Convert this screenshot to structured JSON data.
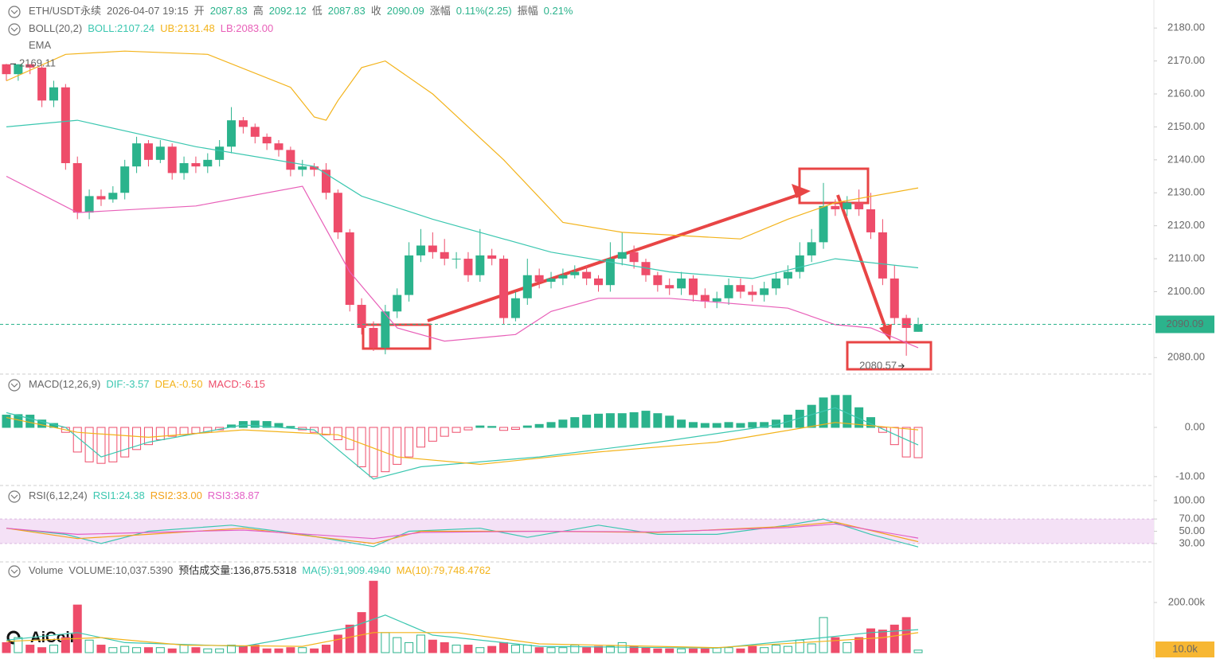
{
  "brand": "AiCoin",
  "chart_data": [
    {
      "type": "candlestick",
      "header": {
        "symbol": "ETH/USDT永续",
        "time": "2026-04-07 19:15",
        "fields": [
          {
            "label": "开",
            "value": "2087.83"
          },
          {
            "label": "高",
            "value": "2092.12"
          },
          {
            "label": "低",
            "value": "2087.83"
          },
          {
            "label": "收",
            "value": "2090.09"
          },
          {
            "label": "涨幅",
            "value": "0.11%(2.25)"
          },
          {
            "label": "振幅",
            "value": "0.21%"
          }
        ]
      },
      "title": "BOLL(20,2)",
      "ema_title": "EMA",
      "up_color": "#2bb38c",
      "down_color": "#ee4c6a",
      "open": [
        2169,
        2166,
        2169,
        2168,
        2158,
        2162,
        2139,
        2124,
        2129,
        2128,
        2130,
        2138,
        2145,
        2140,
        2144,
        2136,
        2139,
        2138,
        2140,
        2144,
        2152,
        2150,
        2147,
        2145,
        2143,
        2137,
        2138,
        2137,
        2130,
        2118,
        2096,
        2089,
        2083,
        2094,
        2099,
        2111,
        2114,
        2112,
        2110,
        2110,
        2105,
        2111,
        2110,
        2092,
        2098,
        2105,
        2103,
        2104,
        2105,
        2106,
        2104,
        2102,
        2110,
        2112,
        2109,
        2105,
        2102,
        2101,
        2104,
        2099,
        2097,
        2098,
        2102,
        2100,
        2099,
        2101,
        2104,
        2106,
        2111,
        2115,
        2126,
        2125,
        2127,
        2125,
        2118,
        2104,
        2092,
        2087.83
      ],
      "high": [
        2169.11,
        2169,
        2169,
        2169,
        2164,
        2163,
        2141,
        2131,
        2131,
        2132,
        2140,
        2147,
        2146,
        2146,
        2145,
        2141,
        2141,
        2142,
        2146,
        2156,
        2153,
        2151,
        2148,
        2146,
        2144,
        2140,
        2139,
        2139,
        2131,
        2119,
        2098,
        2091,
        2096,
        2101,
        2115,
        2119,
        2118,
        2116,
        2112,
        2112,
        2119,
        2113,
        2111,
        2100,
        2110,
        2107,
        2106,
        2107,
        2108,
        2108,
        2105,
        2115,
        2118,
        2114,
        2110,
        2106,
        2104,
        2106,
        2105,
        2101,
        2100,
        2104,
        2104,
        2102,
        2103,
        2106,
        2108,
        2115,
        2119,
        2133,
        2128,
        2129,
        2131,
        2130,
        2122,
        2108,
        2093,
        2092.12
      ],
      "low": [
        2164,
        2164,
        2166,
        2156,
        2156,
        2137,
        2122,
        2122,
        2126,
        2127,
        2128,
        2136,
        2138,
        2139,
        2134,
        2134,
        2136,
        2136,
        2138,
        2142,
        2148,
        2145,
        2143,
        2141,
        2135,
        2135,
        2135,
        2128,
        2116,
        2094,
        2087,
        2082,
        2081,
        2092,
        2097,
        2109,
        2110,
        2108,
        2107,
        2103,
        2103,
        2108,
        2090,
        2091,
        2096,
        2101,
        2101,
        2102,
        2104,
        2102,
        2100,
        2100,
        2108,
        2107,
        2103,
        2100,
        2099,
        2099,
        2097,
        2095,
        2095,
        2096,
        2098,
        2097,
        2097,
        2099,
        2102,
        2104,
        2109,
        2113,
        2123,
        2123,
        2123,
        2116,
        2102,
        2090,
        2080.57,
        2087.83
      ],
      "close": [
        2166,
        2169,
        2168,
        2158,
        2162,
        2139,
        2124,
        2129,
        2128,
        2130,
        2138,
        2145,
        2140,
        2144,
        2136,
        2139,
        2138,
        2140,
        2144,
        2152,
        2150,
        2147,
        2145,
        2143,
        2137,
        2138,
        2137,
        2130,
        2118,
        2096,
        2089,
        2083,
        2094,
        2099,
        2111,
        2114,
        2112,
        2110,
        2110,
        2105,
        2111,
        2110,
        2092,
        2098,
        2105,
        2103,
        2104,
        2105,
        2106,
        2104,
        2102,
        2110,
        2112,
        2109,
        2105,
        2102,
        2101,
        2104,
        2099,
        2097,
        2098,
        2102,
        2100,
        2099,
        2101,
        2104,
        2106,
        2111,
        2115,
        2126,
        2125,
        2127,
        2125,
        2118,
        2104,
        2092,
        2089,
        2090.09
      ],
      "series": [
        {
          "name": "BOLL:2107.24",
          "color": "#3bc7b0",
          "x": [
            0,
            6,
            16,
            26,
            30,
            36,
            46,
            56,
            63,
            70,
            77
          ],
          "values": [
            2150,
            2152,
            2144,
            2138,
            2129,
            2122,
            2112,
            2106,
            2104,
            2110,
            2107.24
          ]
        },
        {
          "name": "UB:2131.48",
          "color": "#f3b31a",
          "x": [
            0,
            5,
            10,
            17,
            24,
            26,
            27,
            28,
            30,
            32,
            36,
            42,
            47,
            52,
            62,
            66,
            70,
            77
          ],
          "values": [
            2164,
            2172,
            2173,
            2172,
            2162,
            2153,
            2152,
            2158,
            2168,
            2170,
            2160,
            2140,
            2121,
            2118,
            2116,
            2122,
            2127,
            2131.48
          ]
        },
        {
          "name": "LB:2083.00",
          "color": "#e85fb8",
          "x": [
            0,
            6,
            16,
            25,
            29,
            33,
            37,
            43,
            46,
            50,
            56,
            66,
            70,
            73,
            77
          ],
          "values": [
            2135,
            2124,
            2126,
            2132,
            2106,
            2089,
            2085,
            2087,
            2094,
            2098,
            2098,
            2095,
            2090,
            2089,
            2083
          ]
        }
      ],
      "ylim": [
        2075,
        2188.5
      ],
      "yticks": [
        {
          "value": 2180,
          "label": "2180.00"
        },
        {
          "value": 2170,
          "label": "2170.00"
        },
        {
          "value": 2160,
          "label": "2160.00"
        },
        {
          "value": 2150,
          "label": "2150.00"
        },
        {
          "value": 2140,
          "label": "2140.00"
        },
        {
          "value": 2130,
          "label": "2130.00"
        },
        {
          "value": 2120,
          "label": "2120.00"
        },
        {
          "value": 2110,
          "label": "2110.00"
        },
        {
          "value": 2100,
          "label": "2100.00"
        },
        {
          "value": 2080,
          "label": "2080.00"
        }
      ]
    },
    {
      "type": "macd",
      "title": "MACD(12,26,9)",
      "series": [
        {
          "name": "DIF:-3.57",
          "color": "#3bc7b0",
          "x": [
            0,
            5,
            8,
            12,
            20,
            26,
            31,
            35,
            45,
            55,
            65,
            70,
            77
          ],
          "values": [
            3,
            0,
            -6,
            -3,
            0.5,
            -0.5,
            -10.5,
            -8,
            -6,
            -3,
            0.5,
            4,
            -3.57
          ]
        },
        {
          "name": "DEA:-0.50",
          "color": "#f3b31a",
          "x": [
            0,
            6,
            12,
            20,
            28,
            33,
            40,
            50,
            60,
            70,
            77
          ],
          "values": [
            2,
            -1,
            -2,
            -0.5,
            -1.5,
            -6,
            -7.5,
            -5,
            -3,
            1,
            -0.5
          ]
        }
      ],
      "histogram": {
        "name": "MACD:-6.15",
        "values": [
          2.5,
          2.6,
          2.5,
          1.5,
          0.8,
          -1,
          -5,
          -7,
          -7.3,
          -7,
          -6,
          -4.5,
          -3.5,
          -2.5,
          -1.8,
          -1.5,
          -1.2,
          -1,
          -0.5,
          0.5,
          1.2,
          1.3,
          1.2,
          0.8,
          0.2,
          -0.5,
          -1,
          -1.5,
          -2.5,
          -4.5,
          -8,
          -10,
          -9,
          -7.5,
          -6,
          -4,
          -2.8,
          -1.8,
          -1,
          -0.5,
          0.3,
          0.2,
          -0.6,
          -0.4,
          0.3,
          0.6,
          1,
          1.5,
          2,
          2.5,
          2.7,
          2.8,
          2.8,
          3,
          3.3,
          2.8,
          2.3,
          1.5,
          1,
          0.8,
          0.8,
          1,
          0.8,
          1,
          1,
          1.5,
          2.5,
          3.5,
          4.5,
          6,
          6.5,
          6.5,
          4,
          2,
          -1,
          -3.5,
          -6,
          -6.15
        ]
      },
      "ylim": [
        -11.8,
        7.6
      ],
      "yticks": [
        {
          "value": 0,
          "label": "0.00"
        },
        {
          "value": -10,
          "label": "-10.00"
        }
      ]
    },
    {
      "type": "line",
      "title": "RSI(6,12,24)",
      "series": [
        {
          "name": "RSI1:24.38",
          "color": "#3bc7b0",
          "x": [
            0,
            5,
            8,
            12,
            19,
            25,
            31,
            34,
            40,
            44,
            50,
            55,
            60,
            66,
            69,
            73,
            77
          ],
          "values": [
            55,
            45,
            30,
            50,
            60,
            45,
            25,
            50,
            55,
            40,
            60,
            45,
            45,
            60,
            70,
            45,
            24.38
          ]
        },
        {
          "name": "RSI2:33.00",
          "color": "#f3a21a",
          "x": [
            0,
            6,
            12,
            20,
            31,
            35,
            45,
            55,
            66,
            70,
            77
          ],
          "values": [
            55,
            38,
            45,
            55,
            30,
            50,
            50,
            48,
            58,
            65,
            33
          ]
        },
        {
          "name": "RSI3:38.87",
          "color": "#e35fc5",
          "x": [
            0,
            6,
            12,
            20,
            31,
            35,
            45,
            55,
            66,
            70,
            77
          ],
          "values": [
            55,
            45,
            48,
            52,
            38,
            48,
            50,
            49,
            56,
            62,
            38.87
          ]
        }
      ],
      "band": [
        30,
        70
      ],
      "ylim": [
        0,
        111.7
      ],
      "yticks": [
        {
          "value": 100,
          "label": "100.00"
        },
        {
          "value": 70,
          "label": "70.00"
        },
        {
          "value": 50,
          "label": "50.00"
        },
        {
          "value": 30,
          "label": "30.00"
        }
      ]
    },
    {
      "type": "volume",
      "title": "Volume",
      "name": "VOLUME:10,037.5390",
      "estimate": "预估成交量:136,875.5318",
      "values": [
        40000,
        60000,
        30000,
        20000,
        30000,
        60000,
        190000,
        50000,
        30000,
        20000,
        25000,
        20000,
        20000,
        20000,
        15000,
        30000,
        20000,
        15000,
        15000,
        30000,
        25000,
        30000,
        15000,
        15000,
        20000,
        20000,
        15000,
        30000,
        70000,
        110000,
        160000,
        285000,
        80000,
        60000,
        40000,
        70000,
        50000,
        40000,
        30000,
        30000,
        20000,
        25000,
        40000,
        30000,
        30000,
        20000,
        20000,
        20000,
        30000,
        20000,
        25000,
        25000,
        40000,
        25000,
        20000,
        15000,
        15000,
        15000,
        15000,
        15000,
        20000,
        20000,
        15000,
        25000,
        20000,
        30000,
        25000,
        50000,
        35000,
        140000,
        60000,
        40000,
        60000,
        95000,
        90000,
        110000,
        140000,
        10037.539
      ],
      "last_label": "10.0k",
      "series": [
        {
          "name": "MA(5):91,909.4940",
          "color": "#3bc7b0",
          "x": [
            0,
            6,
            10,
            20,
            29,
            32,
            36,
            45,
            60,
            69,
            73,
            77
          ],
          "values": [
            50000,
            80000,
            40000,
            25000,
            100000,
            150000,
            70000,
            25000,
            18000,
            60000,
            80000,
            91909.494
          ]
        },
        {
          "name": "MA(10):79,748.4762",
          "color": "#f3b31a",
          "x": [
            0,
            8,
            15,
            25,
            31,
            38,
            45,
            60,
            69,
            74,
            77
          ],
          "values": [
            45000,
            60000,
            30000,
            25000,
            80000,
            80000,
            35000,
            20000,
            45000,
            60000,
            79748.4762
          ]
        }
      ],
      "ylim": [
        0,
        362000
      ],
      "yticks": [
        {
          "value": 200000,
          "label": "200.00k"
        }
      ]
    }
  ]
}
